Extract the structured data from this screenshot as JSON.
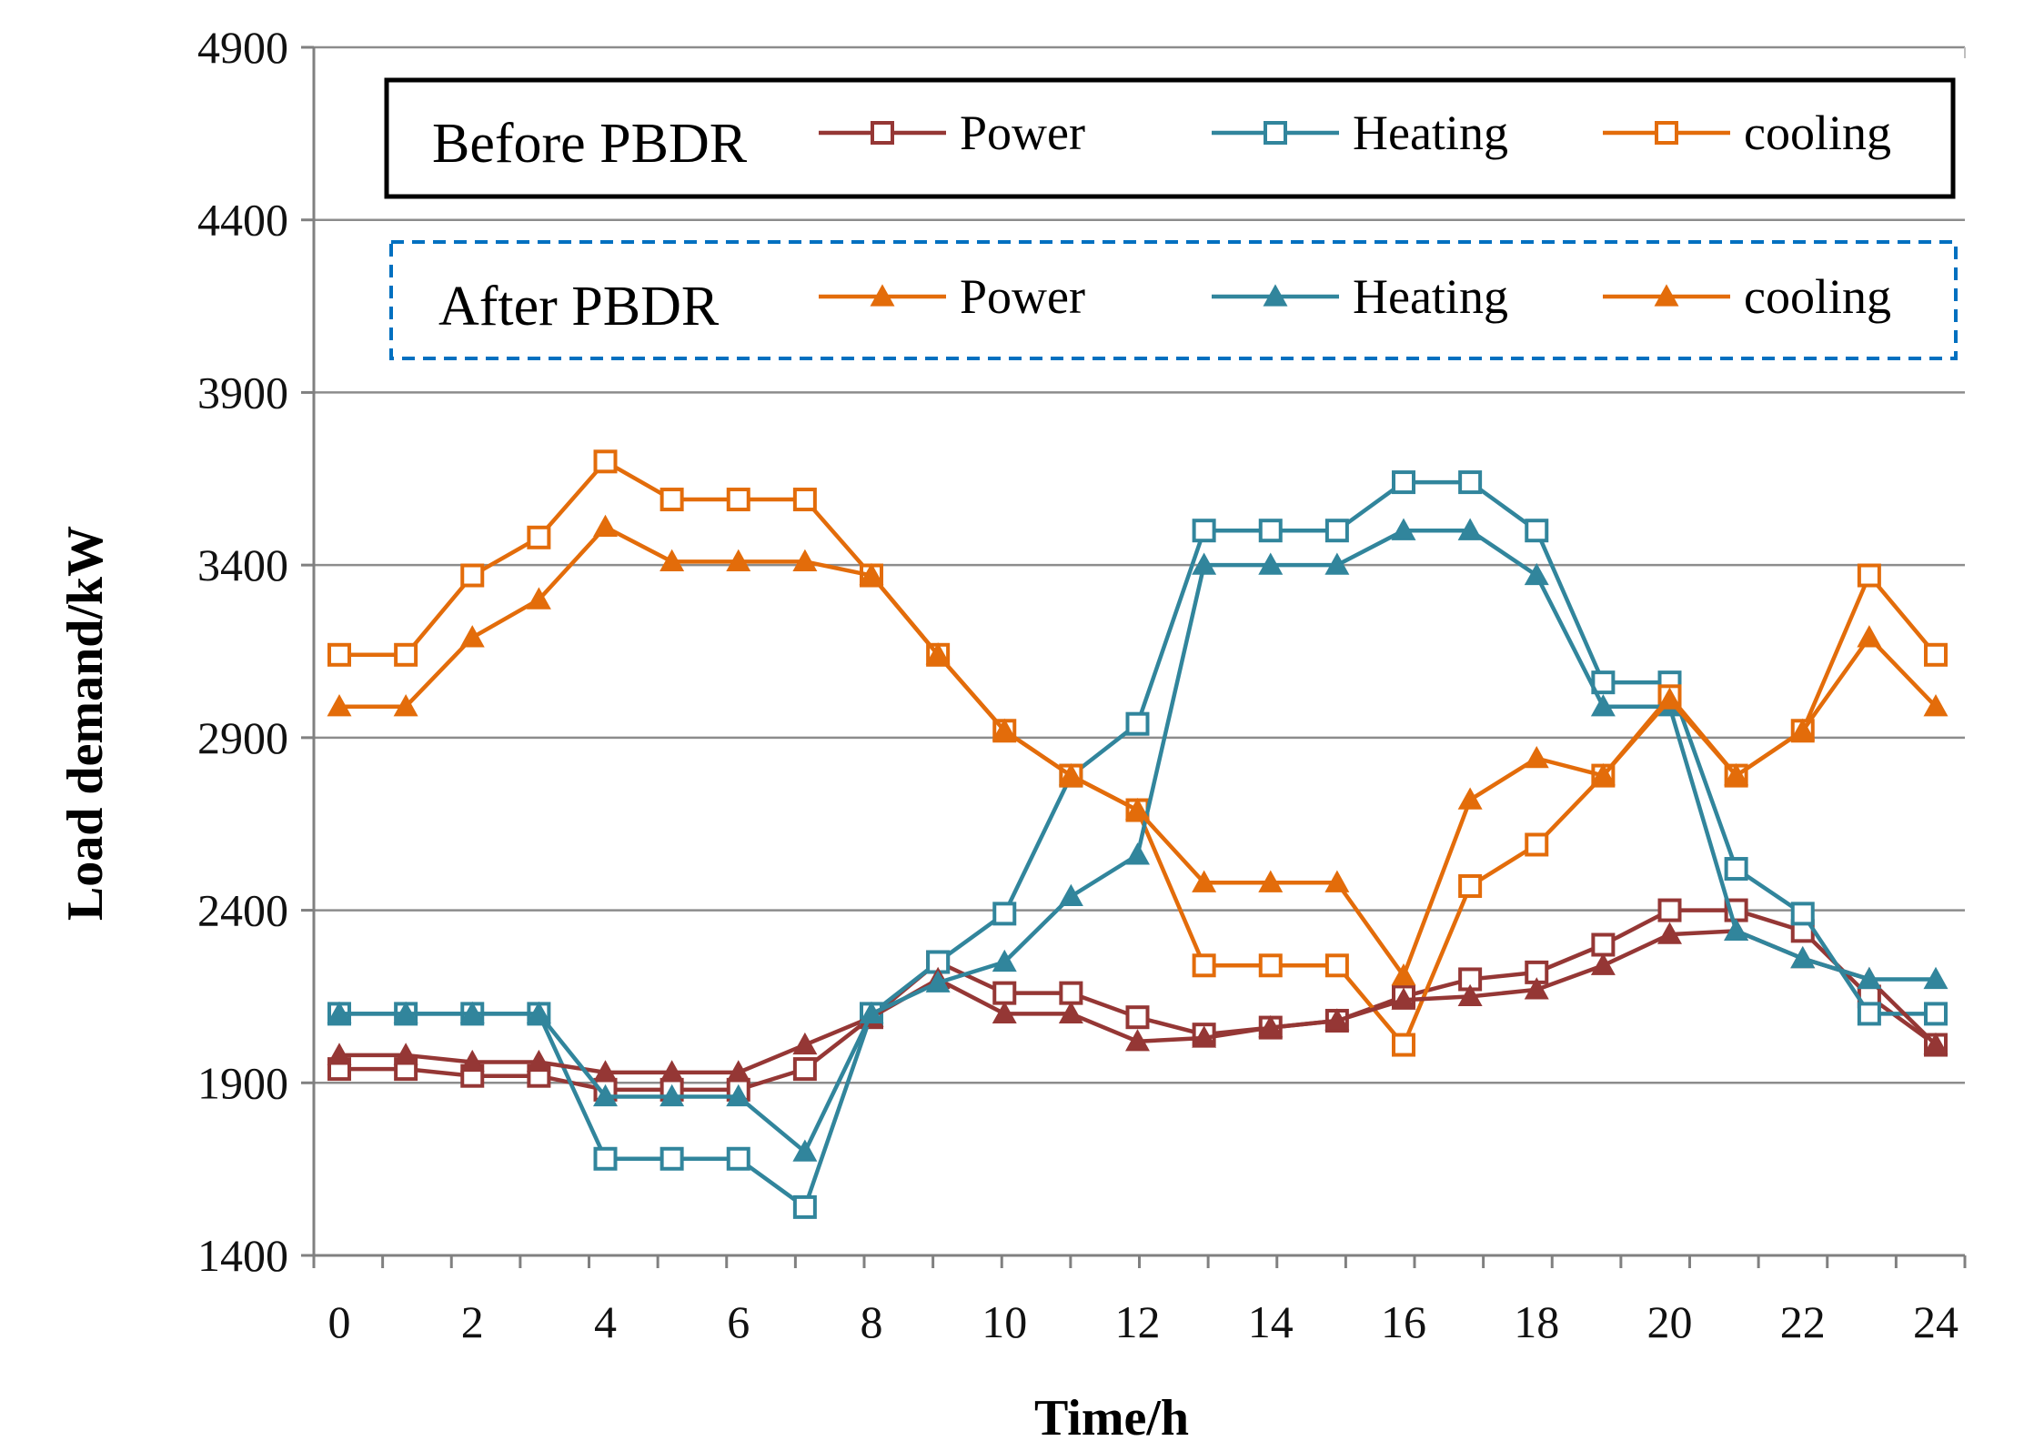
{
  "chart_data": {
    "type": "line",
    "title": "",
    "xlabel": "Time/h",
    "ylabel": "Load demand/kW",
    "xlim": [
      0,
      24
    ],
    "ylim": [
      1400,
      4900
    ],
    "yticks": [
      1400,
      1900,
      2400,
      2900,
      3400,
      3900,
      4400,
      4900
    ],
    "xticks": [
      0,
      2,
      4,
      6,
      8,
      10,
      12,
      14,
      16,
      18,
      20,
      22,
      24
    ],
    "ytick_labels": [
      "1400",
      "1900",
      "2400",
      "2900",
      "3400",
      "3900",
      "4400",
      "4900"
    ],
    "xtick_labels": [
      "0",
      "2",
      "4",
      "6",
      "8",
      "10",
      "12",
      "14",
      "16",
      "18",
      "20",
      "22",
      "24"
    ],
    "grid": "horizontal",
    "legend": {
      "before_title": "Before PBDR",
      "after_title": "After PBDR",
      "before_entries": [
        "Power",
        "Heating",
        "cooling"
      ],
      "after_entries": [
        "Power",
        "Heating",
        "cooling"
      ]
    },
    "colors": {
      "power_before": "#953735",
      "power_after": "#E36C0A",
      "heating": "#31859C",
      "cooling": "#E36C0A",
      "after_box_border": "#0070C0"
    },
    "x": [
      0,
      1,
      2,
      3,
      4,
      5,
      6,
      7,
      8,
      9,
      10,
      11,
      12,
      13,
      14,
      15,
      16,
      17,
      18,
      19,
      20,
      21,
      22,
      23,
      24
    ],
    "series": [
      {
        "name": "Power",
        "group": "Before PBDR",
        "marker": "square",
        "color": "#953735",
        "values": [
          1940,
          1940,
          1920,
          1920,
          1880,
          1880,
          1880,
          1940,
          2090,
          2250,
          2160,
          2160,
          2090,
          2040,
          2060,
          2080,
          2150,
          2200,
          2220,
          2300,
          2400,
          2400,
          2340,
          2150,
          2010
        ]
      },
      {
        "name": "Heating",
        "group": "Before PBDR",
        "marker": "square",
        "color": "#31859C",
        "values": [
          2100,
          2100,
          2100,
          2100,
          1680,
          1680,
          1680,
          1540,
          2100,
          2250,
          2390,
          2790,
          2940,
          3500,
          3500,
          3500,
          3640,
          3640,
          3500,
          3060,
          3060,
          2520,
          2390,
          2100,
          2100
        ]
      },
      {
        "name": "cooling",
        "group": "Before PBDR",
        "marker": "square",
        "color": "#E36C0A",
        "values": [
          3140,
          3140,
          3370,
          3480,
          3700,
          3590,
          3590,
          3590,
          3370,
          3140,
          2920,
          2790,
          2690,
          2240,
          2240,
          2240,
          2010,
          2470,
          2590,
          2790,
          3020,
          2790,
          2920,
          3370,
          3140
        ]
      },
      {
        "name": "Power",
        "group": "After PBDR",
        "marker": "triangle",
        "color": "#953735",
        "values": [
          1980,
          1980,
          1960,
          1960,
          1930,
          1930,
          1930,
          2010,
          2090,
          2200,
          2100,
          2100,
          2020,
          2030,
          2060,
          2080,
          2140,
          2150,
          2170,
          2240,
          2330,
          2340,
          2260,
          2200,
          2010
        ]
      },
      {
        "name": "Heating",
        "group": "After PBDR",
        "marker": "triangle",
        "color": "#31859C",
        "values": [
          2100,
          2100,
          2100,
          2100,
          1860,
          1860,
          1860,
          1700,
          2100,
          2190,
          2250,
          2440,
          2560,
          3400,
          3400,
          3400,
          3500,
          3500,
          3370,
          2990,
          2990,
          2340,
          2260,
          2200,
          2200
        ]
      },
      {
        "name": "cooling",
        "group": "After PBDR",
        "marker": "triangle",
        "color": "#E36C0A",
        "values": [
          2990,
          2990,
          3190,
          3300,
          3510,
          3410,
          3410,
          3410,
          3370,
          3140,
          2920,
          2790,
          2690,
          2480,
          2480,
          2480,
          2210,
          2720,
          2840,
          2790,
          3010,
          2790,
          2920,
          3190,
          2990
        ]
      }
    ]
  }
}
